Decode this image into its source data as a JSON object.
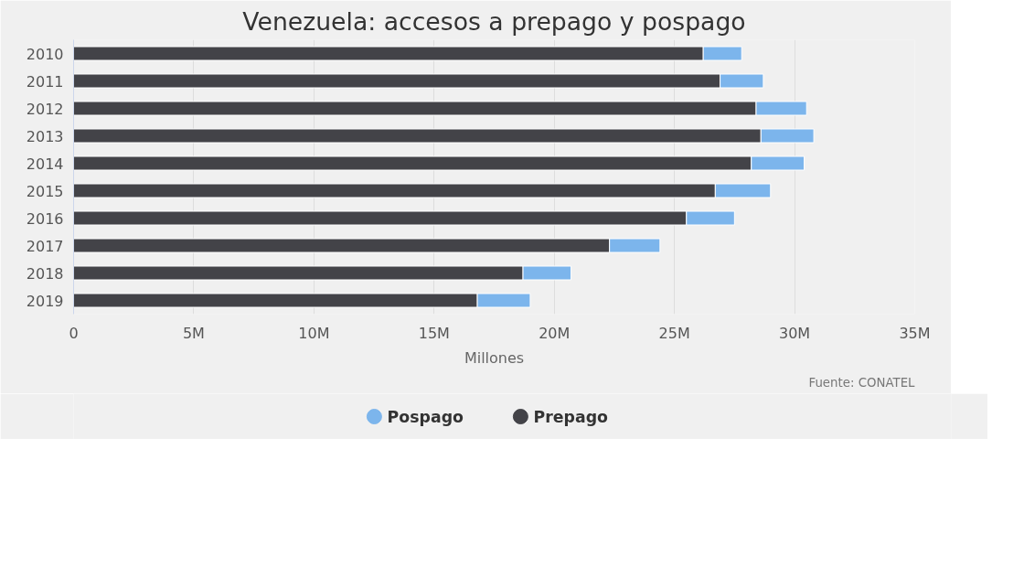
{
  "chart_data": {
    "type": "bar",
    "orientation": "horizontal",
    "stacked": true,
    "title": "Venezuela: accesos a prepago y pospago",
    "xlabel": "Millones",
    "categories": [
      "2010",
      "2011",
      "2012",
      "2013",
      "2014",
      "2015",
      "2016",
      "2017",
      "2018",
      "2019"
    ],
    "series": [
      {
        "name": "Prepago",
        "color": "#434348",
        "values": [
          26.2,
          26.9,
          28.4,
          28.6,
          28.2,
          26.7,
          25.5,
          22.3,
          18.7,
          16.8
        ]
      },
      {
        "name": "Pospago",
        "color": "#7cb5ec",
        "values": [
          1.6,
          1.8,
          2.1,
          2.2,
          2.2,
          2.3,
          2.0,
          2.1,
          2.0,
          2.2
        ]
      }
    ],
    "xlim": [
      0,
      35
    ],
    "xticks": [
      0,
      {
        "value": 5,
        "label": "5M"
      },
      {
        "value": 10,
        "label": "10M"
      },
      {
        "value": 15,
        "label": "15M"
      },
      {
        "value": 20,
        "label": "20M"
      },
      {
        "value": 25,
        "label": "25M"
      },
      {
        "value": 30,
        "label": "30M"
      },
      {
        "value": 35,
        "label": "35M"
      }
    ],
    "grid": "x",
    "legend": "bottom",
    "annotations": [
      "Fuente: CONATEL"
    ]
  }
}
